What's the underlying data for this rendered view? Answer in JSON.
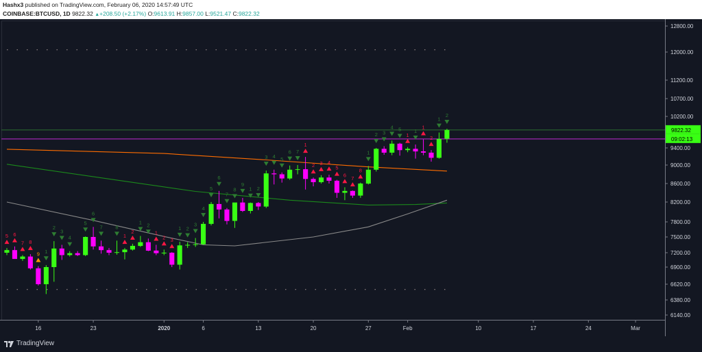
{
  "header": {
    "author": "Hashx3",
    "published_text": "published on TradingView.com, February 06, 2020 14:57:49 UTC",
    "symbol": "COINBASE:BTCUSD, 1D",
    "last": "9822.32",
    "change": "+208.50 (+2.17%)",
    "o_label": "O:",
    "o": "9613.91",
    "h_label": "H:",
    "h": "9857.00",
    "l_label": "L:",
    "l": "9521.47",
    "c_label": "C:",
    "c": "9822.32"
  },
  "footer": {
    "brand": "TradingView"
  },
  "colors": {
    "background": "#131722",
    "bull": "#39ff14",
    "bear": "#ff00ff",
    "ma_orange": "#ff6d00",
    "ma_green": "#1b8a1b",
    "ma_gray": "#8a8a8a",
    "hline_purple": "#9c27b0",
    "hline_green": "#2e7d32",
    "signal_green": "#2e7d32",
    "signal_red": "#ff1744",
    "signal_orange": "#ff9800",
    "axis_text": "#d1d4dc"
  },
  "chart_data": {
    "type": "candlestick",
    "y_ticks": [
      6140,
      6380,
      6620,
      6900,
      7200,
      7500,
      7800,
      8200,
      8600,
      9000,
      9400,
      9800,
      10200,
      10700,
      11200,
      12000,
      12800
    ],
    "y_tick_labels": [
      "6140.00",
      "6380.00",
      "6620.00",
      "6900.00",
      "7200.00",
      "7500.00",
      "7800.00",
      "8200.00",
      "8600.00",
      "9000.00",
      "9400.00",
      "9800.00",
      "10200.00",
      "10700.00",
      "11200.00",
      "12000.00",
      "12800.00"
    ],
    "ylim": [
      6000,
      13000
    ],
    "x_ticks": [
      {
        "date": "2019-12-16",
        "label": "16"
      },
      {
        "date": "2019-12-23",
        "label": "23"
      },
      {
        "date": "2020-01-01",
        "label": "2020"
      },
      {
        "date": "2020-01-06",
        "label": "6"
      },
      {
        "date": "2020-01-13",
        "label": "13"
      },
      {
        "date": "2020-01-20",
        "label": "20"
      },
      {
        "date": "2020-01-27",
        "label": "27"
      },
      {
        "date": "2020-02-01",
        "label": "Feb"
      },
      {
        "date": "2020-02-10",
        "label": "10"
      },
      {
        "date": "2020-02-17",
        "label": "17"
      },
      {
        "date": "2020-02-24",
        "label": "24"
      },
      {
        "date": "2020-03-01",
        "label": "Mar"
      }
    ],
    "x_start": "2019-12-12",
    "x_end": "2020-03-03",
    "price_label": "9822.32",
    "countdown_label": "09:02:13",
    "current_price": 9822.32,
    "purple_level": 9610,
    "dotted_levels": [
      12070,
      6540
    ],
    "candles": [
      {
        "d": "2019-12-12",
        "o": 7200,
        "h": 7290,
        "l": 7150,
        "c": 7250
      },
      {
        "d": "2019-12-13",
        "o": 7250,
        "h": 7320,
        "l": 7080,
        "c": 7070
      },
      {
        "d": "2019-12-14",
        "o": 7070,
        "h": 7150,
        "l": 7030,
        "c": 7120
      },
      {
        "d": "2019-12-15",
        "o": 7120,
        "h": 7170,
        "l": 6860,
        "c": 6880
      },
      {
        "d": "2019-12-16",
        "o": 6880,
        "h": 6920,
        "l": 6600,
        "c": 6620
      },
      {
        "d": "2019-12-17",
        "o": 6620,
        "h": 6940,
        "l": 6470,
        "c": 6900
      },
      {
        "d": "2019-12-18",
        "o": 6900,
        "h": 7420,
        "l": 6660,
        "c": 7280
      },
      {
        "d": "2019-12-19",
        "o": 7280,
        "h": 7350,
        "l": 7050,
        "c": 7150
      },
      {
        "d": "2019-12-20",
        "o": 7150,
        "h": 7230,
        "l": 7120,
        "c": 7190
      },
      {
        "d": "2019-12-21",
        "o": 7190,
        "h": 7230,
        "l": 7130,
        "c": 7150
      },
      {
        "d": "2019-12-22",
        "o": 7150,
        "h": 7510,
        "l": 7130,
        "c": 7500
      },
      {
        "d": "2019-12-23",
        "o": 7500,
        "h": 7700,
        "l": 7260,
        "c": 7320
      },
      {
        "d": "2019-12-24",
        "o": 7320,
        "h": 7430,
        "l": 7180,
        "c": 7250
      },
      {
        "d": "2019-12-25",
        "o": 7250,
        "h": 7290,
        "l": 7150,
        "c": 7200
      },
      {
        "d": "2019-12-26",
        "o": 7200,
        "h": 7430,
        "l": 7160,
        "c": 7210
      },
      {
        "d": "2019-12-27",
        "o": 7210,
        "h": 7290,
        "l": 7060,
        "c": 7260
      },
      {
        "d": "2019-12-28",
        "o": 7260,
        "h": 7370,
        "l": 7240,
        "c": 7330
      },
      {
        "d": "2019-12-29",
        "o": 7330,
        "h": 7520,
        "l": 7310,
        "c": 7400
      },
      {
        "d": "2019-12-30",
        "o": 7400,
        "h": 7470,
        "l": 7230,
        "c": 7240
      },
      {
        "d": "2019-12-31",
        "o": 7240,
        "h": 7350,
        "l": 7150,
        "c": 7190
      },
      {
        "d": "2020-01-01",
        "o": 7190,
        "h": 7260,
        "l": 7150,
        "c": 7200
      },
      {
        "d": "2020-01-02",
        "o": 7200,
        "h": 7210,
        "l": 6900,
        "c": 6950
      },
      {
        "d": "2020-01-03",
        "o": 6950,
        "h": 7410,
        "l": 6860,
        "c": 7340
      },
      {
        "d": "2020-01-04",
        "o": 7340,
        "h": 7400,
        "l": 7290,
        "c": 7350
      },
      {
        "d": "2020-01-05",
        "o": 7350,
        "h": 7480,
        "l": 7310,
        "c": 7360
      },
      {
        "d": "2020-01-06",
        "o": 7360,
        "h": 7800,
        "l": 7350,
        "c": 7760
      },
      {
        "d": "2020-01-07",
        "o": 7760,
        "h": 8200,
        "l": 7730,
        "c": 8160
      },
      {
        "d": "2020-01-08",
        "o": 8160,
        "h": 8440,
        "l": 7870,
        "c": 8050
      },
      {
        "d": "2020-01-09",
        "o": 8050,
        "h": 8080,
        "l": 7750,
        "c": 7820
      },
      {
        "d": "2020-01-10",
        "o": 7820,
        "h": 8180,
        "l": 7680,
        "c": 8190
      },
      {
        "d": "2020-01-11",
        "o": 8190,
        "h": 8290,
        "l": 8000,
        "c": 8020
      },
      {
        "d": "2020-01-12",
        "o": 8020,
        "h": 8190,
        "l": 7970,
        "c": 8180
      },
      {
        "d": "2020-01-13",
        "o": 8180,
        "h": 8200,
        "l": 8040,
        "c": 8110
      },
      {
        "d": "2020-01-14",
        "o": 8110,
        "h": 8880,
        "l": 8080,
        "c": 8820
      },
      {
        "d": "2020-01-15",
        "o": 8820,
        "h": 8900,
        "l": 8580,
        "c": 8800
      },
      {
        "d": "2020-01-16",
        "o": 8800,
        "h": 8840,
        "l": 8620,
        "c": 8710
      },
      {
        "d": "2020-01-17",
        "o": 8710,
        "h": 8990,
        "l": 8680,
        "c": 8900
      },
      {
        "d": "2020-01-18",
        "o": 8900,
        "h": 9000,
        "l": 8800,
        "c": 8910
      },
      {
        "d": "2020-01-19",
        "o": 8910,
        "h": 9190,
        "l": 8470,
        "c": 8700
      },
      {
        "d": "2020-01-20",
        "o": 8700,
        "h": 8730,
        "l": 8540,
        "c": 8630
      },
      {
        "d": "2020-01-21",
        "o": 8630,
        "h": 8780,
        "l": 8600,
        "c": 8730
      },
      {
        "d": "2020-01-22",
        "o": 8730,
        "h": 8790,
        "l": 8600,
        "c": 8660
      },
      {
        "d": "2020-01-23",
        "o": 8660,
        "h": 8680,
        "l": 8290,
        "c": 8400
      },
      {
        "d": "2020-01-24",
        "o": 8400,
        "h": 8520,
        "l": 8240,
        "c": 8440
      },
      {
        "d": "2020-01-25",
        "o": 8440,
        "h": 8450,
        "l": 8290,
        "c": 8340
      },
      {
        "d": "2020-01-26",
        "o": 8340,
        "h": 8620,
        "l": 8290,
        "c": 8600
      },
      {
        "d": "2020-01-27",
        "o": 8600,
        "h": 8980,
        "l": 8580,
        "c": 8900
      },
      {
        "d": "2020-01-28",
        "o": 8900,
        "h": 9400,
        "l": 8860,
        "c": 9380
      },
      {
        "d": "2020-01-29",
        "o": 9380,
        "h": 9440,
        "l": 9240,
        "c": 9290
      },
      {
        "d": "2020-01-30",
        "o": 9290,
        "h": 9570,
        "l": 9230,
        "c": 9500
      },
      {
        "d": "2020-01-31",
        "o": 9500,
        "h": 9520,
        "l": 9220,
        "c": 9350
      },
      {
        "d": "2020-02-01",
        "o": 9350,
        "h": 9420,
        "l": 9300,
        "c": 9380
      },
      {
        "d": "2020-02-02",
        "o": 9380,
        "h": 9480,
        "l": 9150,
        "c": 9320
      },
      {
        "d": "2020-02-03",
        "o": 9320,
        "h": 9600,
        "l": 9230,
        "c": 9290
      },
      {
        "d": "2020-02-04",
        "o": 9290,
        "h": 9350,
        "l": 9080,
        "c": 9170
      },
      {
        "d": "2020-02-05",
        "o": 9170,
        "h": 9760,
        "l": 9150,
        "c": 9610
      },
      {
        "d": "2020-02-06",
        "o": 9613.91,
        "h": 9857,
        "l": 9521.47,
        "c": 9822.32
      }
    ],
    "signals": [
      {
        "d": "2019-12-12",
        "t": "sell",
        "n": "5"
      },
      {
        "d": "2019-12-13",
        "t": "sell",
        "n": "6"
      },
      {
        "d": "2019-12-14",
        "t": "sell",
        "n": "7"
      },
      {
        "d": "2019-12-15",
        "t": "sell",
        "n": "8"
      },
      {
        "d": "2019-12-16",
        "t": "sell9",
        "n": "9"
      },
      {
        "d": "2019-12-17",
        "t": "buy",
        "n": "1"
      },
      {
        "d": "2019-12-18",
        "t": "buy",
        "n": "2"
      },
      {
        "d": "2019-12-19",
        "t": "buy",
        "n": "3"
      },
      {
        "d": "2019-12-20",
        "t": "buy",
        "n": "4"
      },
      {
        "d": "2019-12-22",
        "t": "buy",
        "n": "5"
      },
      {
        "d": "2019-12-23",
        "t": "buy",
        "n": "6"
      },
      {
        "d": "2019-12-24",
        "t": "buy",
        "n": "7"
      },
      {
        "d": "2019-12-26",
        "t": "buy",
        "n": "8"
      },
      {
        "d": "2019-12-27",
        "t": "sell",
        "n": "1"
      },
      {
        "d": "2019-12-28",
        "t": "sell",
        "n": "2"
      },
      {
        "d": "2019-12-29",
        "t": "buy",
        "n": "1"
      },
      {
        "d": "2019-12-30",
        "t": "buy",
        "n": "2"
      },
      {
        "d": "2019-12-31",
        "t": "sell",
        "n": "1"
      },
      {
        "d": "2020-01-01",
        "t": "sell",
        "n": "2"
      },
      {
        "d": "2020-01-02",
        "t": "sell",
        "n": "3"
      },
      {
        "d": "2020-01-03",
        "t": "buy",
        "n": "1"
      },
      {
        "d": "2020-01-04",
        "t": "buy",
        "n": "2"
      },
      {
        "d": "2020-01-05",
        "t": "buy",
        "n": "3"
      },
      {
        "d": "2020-01-06",
        "t": "buy",
        "n": "4"
      },
      {
        "d": "2020-01-07",
        "t": "buy",
        "n": "5"
      },
      {
        "d": "2020-01-08",
        "t": "buy",
        "n": "6"
      },
      {
        "d": "2020-01-09",
        "t": "buy",
        "n": "7"
      },
      {
        "d": "2020-01-10",
        "t": "buy",
        "n": "8"
      },
      {
        "d": "2020-01-11",
        "t": "buy",
        "n": "9"
      },
      {
        "d": "2020-01-12",
        "t": "buy",
        "n": "1"
      },
      {
        "d": "2020-01-13",
        "t": "buy",
        "n": "2"
      },
      {
        "d": "2020-01-14",
        "t": "buy",
        "n": "3"
      },
      {
        "d": "2020-01-15",
        "t": "buy",
        "n": "4"
      },
      {
        "d": "2020-01-16",
        "t": "buy",
        "n": "5"
      },
      {
        "d": "2020-01-17",
        "t": "buy",
        "n": "6"
      },
      {
        "d": "2020-01-18",
        "t": "buy",
        "n": "7"
      },
      {
        "d": "2020-01-19",
        "t": "sell",
        "n": "1"
      },
      {
        "d": "2020-01-20",
        "t": "sell",
        "n": "2"
      },
      {
        "d": "2020-01-21",
        "t": "sell",
        "n": "3"
      },
      {
        "d": "2020-01-22",
        "t": "sell",
        "n": "4"
      },
      {
        "d": "2020-01-23",
        "t": "sell",
        "n": "5"
      },
      {
        "d": "2020-01-24",
        "t": "sell",
        "n": "6"
      },
      {
        "d": "2020-01-25",
        "t": "sell",
        "n": "7"
      },
      {
        "d": "2020-01-26",
        "t": "sell",
        "n": "8"
      },
      {
        "d": "2020-01-27",
        "t": "buy",
        "n": "1"
      },
      {
        "d": "2020-01-28",
        "t": "buy",
        "n": "2"
      },
      {
        "d": "2020-01-29",
        "t": "buy",
        "n": "3"
      },
      {
        "d": "2020-01-30",
        "t": "buy",
        "n": "4"
      },
      {
        "d": "2020-01-31",
        "t": "buy",
        "n": "5"
      },
      {
        "d": "2020-02-01",
        "t": "sell",
        "n": "1"
      },
      {
        "d": "2020-02-02",
        "t": "buy",
        "n": "1"
      },
      {
        "d": "2020-02-03",
        "t": "sell",
        "n": "1"
      },
      {
        "d": "2020-02-04",
        "t": "sell",
        "n": "2"
      },
      {
        "d": "2020-02-05",
        "t": "buy",
        "n": "1"
      },
      {
        "d": "2020-02-06",
        "t": "buy",
        "n": "2"
      }
    ],
    "ma_orange": [
      [
        "2019-12-12",
        9370
      ],
      [
        "2020-01-01",
        9270
      ],
      [
        "2020-01-14",
        9120
      ],
      [
        "2020-01-27",
        8960
      ],
      [
        "2020-02-06",
        8870
      ]
    ],
    "ma_green": [
      [
        "2019-12-12",
        9020
      ],
      [
        "2019-12-25",
        8700
      ],
      [
        "2020-01-05",
        8430
      ],
      [
        "2020-01-17",
        8240
      ],
      [
        "2020-01-27",
        8140
      ],
      [
        "2020-02-02",
        8150
      ],
      [
        "2020-02-06",
        8180
      ]
    ],
    "ma_gray": [
      [
        "2019-12-12",
        8200
      ],
      [
        "2019-12-23",
        7830
      ],
      [
        "2020-01-01",
        7510
      ],
      [
        "2020-01-06",
        7350
      ],
      [
        "2020-01-10",
        7330
      ],
      [
        "2020-01-20",
        7500
      ],
      [
        "2020-01-27",
        7700
      ],
      [
        "2020-02-01",
        7960
      ],
      [
        "2020-02-06",
        8240
      ]
    ]
  }
}
